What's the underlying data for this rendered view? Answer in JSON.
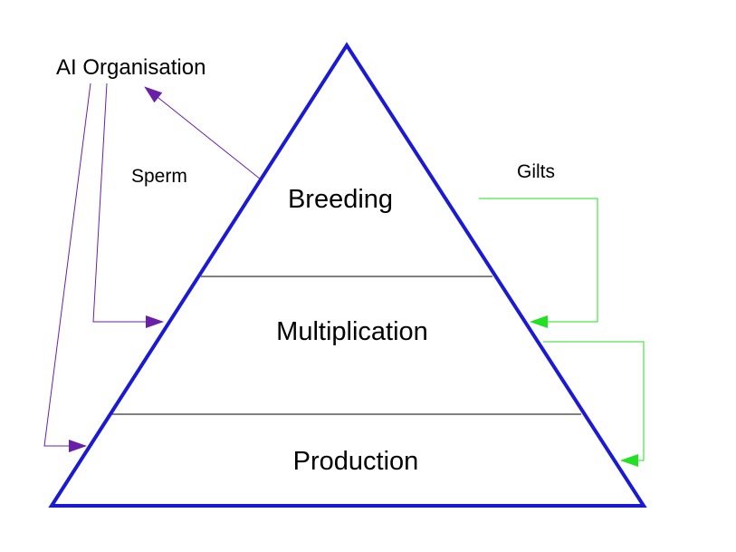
{
  "labels": {
    "ai_org": "AI Organisation",
    "sperm": "Sperm",
    "gilts": "Gilts"
  },
  "tiers": {
    "breeding": "Breeding",
    "multiplication": "Multiplication",
    "production": "Production"
  },
  "colors": {
    "pyramid": "#1a1ad6",
    "sperm_flow": "#6a1fa8",
    "gilts_flow": "#22e022",
    "tier_divider": "#000000"
  }
}
